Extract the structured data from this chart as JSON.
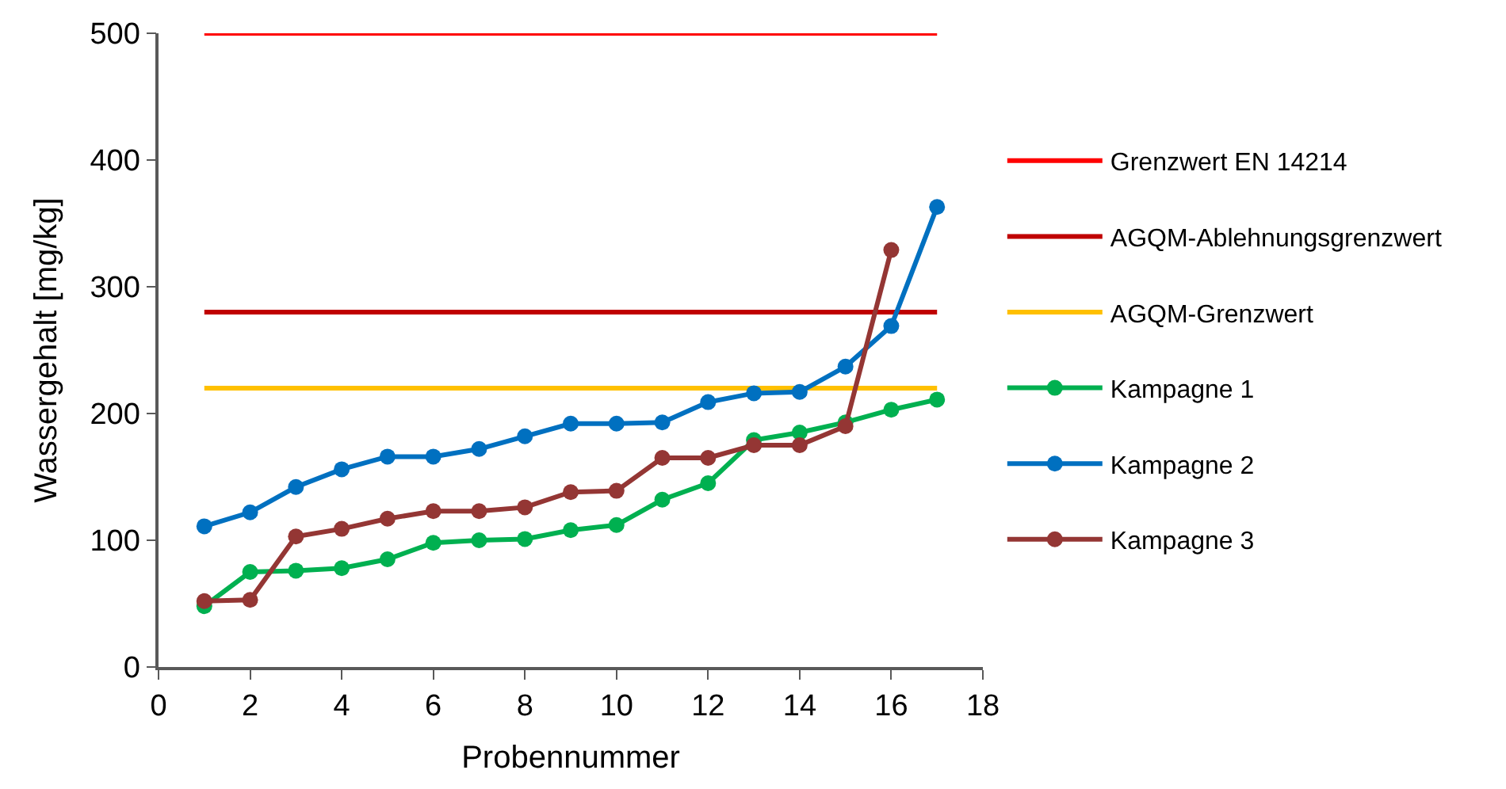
{
  "chart_data": {
    "type": "line",
    "xlabel": "Probennummer",
    "ylabel": "Wassergehalt [mg/kg]",
    "xlim": [
      0,
      18
    ],
    "xticks": [
      0,
      2,
      4,
      6,
      8,
      10,
      12,
      14,
      16,
      18
    ],
    "ylim": [
      0,
      500
    ],
    "yticks": [
      0,
      100,
      200,
      300,
      400,
      500
    ],
    "legend": "right",
    "marker": "circle",
    "line_style": "solid",
    "x": [
      1,
      2,
      3,
      4,
      5,
      6,
      7,
      8,
      9,
      10,
      11,
      12,
      13,
      14,
      15,
      16,
      17
    ],
    "series": [
      {
        "name": "Grenzwert EN 14214",
        "color": "#ff0000",
        "x": [
          1,
          17
        ],
        "values": [
          500,
          500
        ],
        "marker": "none"
      },
      {
        "name": "AGQM-Ablehnungsgrenzwert",
        "color": "#c00000",
        "x": [
          1,
          17
        ],
        "values": [
          280,
          280
        ],
        "marker": "none"
      },
      {
        "name": "AGQM-Grenzwert",
        "color": "#ffc000",
        "x": [
          1,
          17
        ],
        "values": [
          220,
          220
        ],
        "marker": "none"
      },
      {
        "name": "Kampagne 1",
        "color": "#00b050",
        "values": [
          48,
          75,
          76,
          78,
          85,
          98,
          100,
          101,
          108,
          112,
          132,
          145,
          179,
          185,
          193,
          203,
          211
        ]
      },
      {
        "name": "Kampagne 2",
        "color": "#0070c0",
        "values": [
          111,
          122,
          142,
          156,
          166,
          166,
          172,
          182,
          192,
          192,
          193,
          209,
          216,
          217,
          237,
          269,
          363
        ]
      },
      {
        "name": "Kampagne 3",
        "color": "#943634",
        "x": [
          1,
          2,
          3,
          4,
          5,
          6,
          7,
          8,
          9,
          10,
          11,
          12,
          13,
          14,
          15,
          16
        ],
        "values": [
          52,
          53,
          103,
          109,
          117,
          123,
          123,
          126,
          138,
          139,
          165,
          165,
          175,
          175,
          190,
          329
        ]
      }
    ]
  }
}
